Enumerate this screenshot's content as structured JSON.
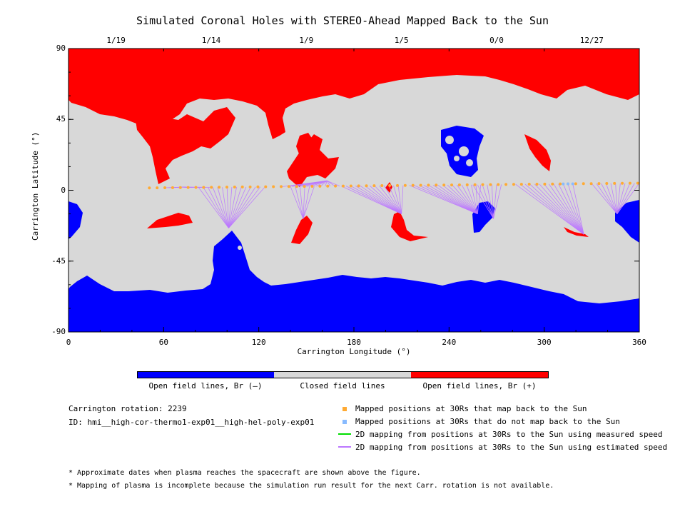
{
  "title": "Simulated Coronal Holes with STEREO-Ahead Mapped Back to the Sun",
  "colors": {
    "open_neg": "#0000ff",
    "closed": "#d8d8d8",
    "open_pos": "#ff0000",
    "mapped": "#ffaa33",
    "unmapped": "#88bbff",
    "measured": "#00dd00",
    "estimated": "#bb77ff"
  },
  "chart_data": {
    "type": "map",
    "xlabel": "Carrington Longitude (°)",
    "ylabel": "Carrington Latitude (°)",
    "xlim": [
      0,
      360
    ],
    "ylim": [
      -90,
      90
    ],
    "x_ticks": [
      0,
      60,
      120,
      180,
      240,
      300,
      360
    ],
    "y_ticks": [
      90,
      45,
      0,
      -45,
      -90
    ],
    "date_ticks": [
      {
        "lon": 30,
        "label": "1/19"
      },
      {
        "lon": 90,
        "label": "1/14"
      },
      {
        "lon": 150,
        "label": "1/9"
      },
      {
        "lon": 210,
        "label": "1/5"
      },
      {
        "lon": 270,
        "label": "0/0"
      },
      {
        "lon": 330,
        "label": "12/27"
      }
    ],
    "mapped_points": {
      "lon_start": 51,
      "lon_end": 359,
      "lat_start": 1.5,
      "lat_end": 4.5,
      "count": 64
    },
    "unmapped_lons": [
      312,
      315,
      318
    ],
    "mapping_targets": [
      {
        "lon": 72,
        "lat": 2,
        "from": [
          60,
          90
        ]
      },
      {
        "lon": 101,
        "lat": -24,
        "from": [
          82,
          126
        ]
      },
      {
        "lon": 148,
        "lat": -18,
        "from": [
          140,
          155
        ]
      },
      {
        "lon": 163,
        "lat": 6,
        "from": [
          135,
          172
        ]
      },
      {
        "lon": 210,
        "lat": -15,
        "from": [
          172,
          212
        ]
      },
      {
        "lon": 258,
        "lat": -15,
        "from": [
          215,
          262
        ]
      },
      {
        "lon": 268,
        "lat": -18,
        "from": [
          255,
          275
        ]
      },
      {
        "lon": 325,
        "lat": -28,
        "from": [
          282,
          318
        ]
      },
      {
        "lon": 346,
        "lat": -15,
        "from": [
          330,
          360
        ]
      }
    ]
  },
  "colorbar": {
    "labels": [
      "Open field lines, Br (–)",
      "Closed field lines",
      "Open field lines, Br (+)"
    ]
  },
  "info": {
    "rotation": "Carrington rotation: 2239",
    "id": "ID: hmi__high-cor-thermo1-exp01__high-hel-poly-exp01"
  },
  "legend": [
    "Mapped positions at 30Rs that map back to the Sun",
    "Mapped positions at 30Rs that do not map back to the Sun",
    "2D mapping from positions at 30Rs to the Sun using measured speed",
    "2D mapping from positions at 30Rs to the Sun using estimated speed"
  ],
  "notes": [
    "* Approximate dates when plasma reaches the spacecraft are shown above the figure.",
    "* Mapping of plasma is incomplete because the simulation run result for the next Carr. rotation is not available."
  ]
}
